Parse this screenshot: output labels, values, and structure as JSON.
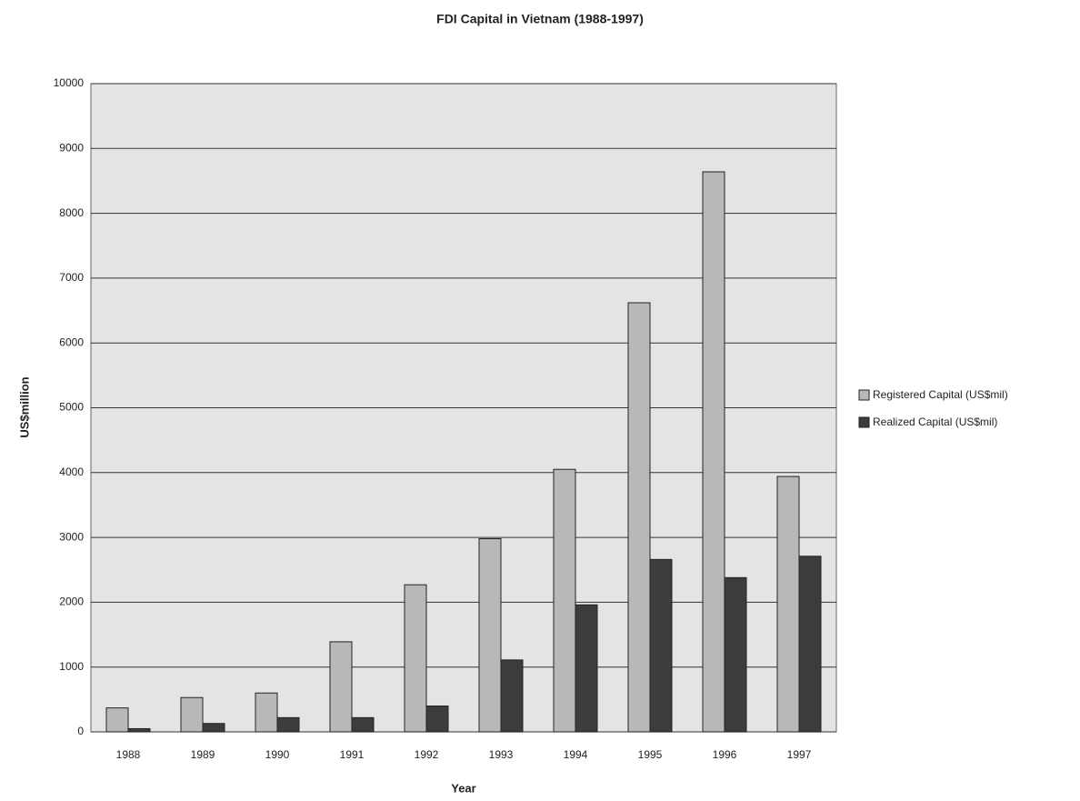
{
  "chart_data": {
    "type": "bar",
    "title": "FDI Capital in Vietnam (1988-1997)",
    "x_label": "Year",
    "y_label": "US$million",
    "categories": [
      "1988",
      "1989",
      "1990",
      "1991",
      "1992",
      "1993",
      "1994",
      "1995",
      "1996",
      "1997"
    ],
    "series": [
      {
        "name": "Registered Capital (US$mil)",
        "color": "#b8b8b8",
        "values": [
          370,
          530,
          600,
          1390,
          2270,
          2980,
          4050,
          6620,
          8640,
          3940
        ]
      },
      {
        "name": "Realized Capital (US$mil)",
        "color": "#3c3c3c",
        "values": [
          50,
          130,
          220,
          220,
          400,
          1110,
          1960,
          2660,
          2380,
          2710
        ]
      }
    ],
    "ylim": [
      0,
      10000
    ],
    "yticks": [
      0,
      1000,
      2000,
      3000,
      4000,
      5000,
      6000,
      7000,
      8000,
      9000,
      10000
    ],
    "grid": true,
    "legend": "right"
  }
}
